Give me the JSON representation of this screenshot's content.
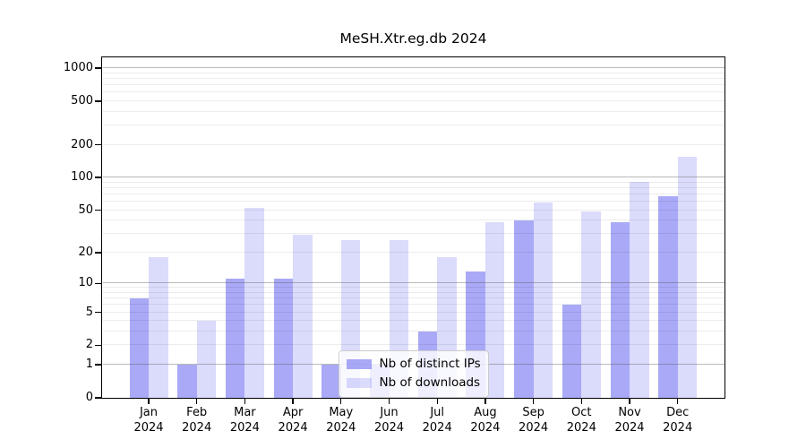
{
  "title": "MeSH.Xtr.eg.db 2024",
  "colors": {
    "distinct_ips_bar": "rgba(125,125,243,0.66)",
    "downloads_bar": "rgba(125,125,243,0.28)",
    "grid_major": "rgba(90,90,90,0.42)",
    "grid_minor": "rgba(0,0,0,0.075)",
    "axis": "#000000",
    "legend_border": "#cccccc",
    "legend_background": "rgba(255,255,255,0.8)"
  },
  "chart_data": {
    "type": "bar",
    "title": "MeSH.Xtr.eg.db 2024",
    "yscale": "log10(value+1)",
    "ylim": [
      0,
      1230
    ],
    "yticks": [
      0,
      1,
      2,
      5,
      10,
      20,
      50,
      100,
      200,
      500,
      1000
    ],
    "ymajor_gridlines": [
      1,
      10,
      100,
      1000
    ],
    "yminor_gridlines": [
      2,
      3,
      4,
      5,
      6,
      7,
      8,
      9,
      20,
      30,
      40,
      50,
      60,
      70,
      80,
      90,
      200,
      300,
      400,
      500,
      600,
      700,
      800,
      900
    ],
    "grid": true,
    "legend_position": "inside-bottom-center",
    "categories": [
      "Jan 2024",
      "Feb 2024",
      "Mar 2024",
      "Apr 2024",
      "May 2024",
      "Jun 2024",
      "Jul 2024",
      "Aug 2024",
      "Sep 2024",
      "Oct 2024",
      "Nov 2024",
      "Dec 2024"
    ],
    "series": [
      {
        "name": "Nb of distinct IPs",
        "values": [
          7,
          1,
          11,
          11,
          1,
          1,
          3,
          13,
          40,
          6,
          38,
          67
        ]
      },
      {
        "name": "Nb of downloads",
        "values": [
          18,
          4,
          52,
          29,
          26,
          26,
          18,
          38,
          58,
          48,
          90,
          155
        ]
      }
    ]
  }
}
